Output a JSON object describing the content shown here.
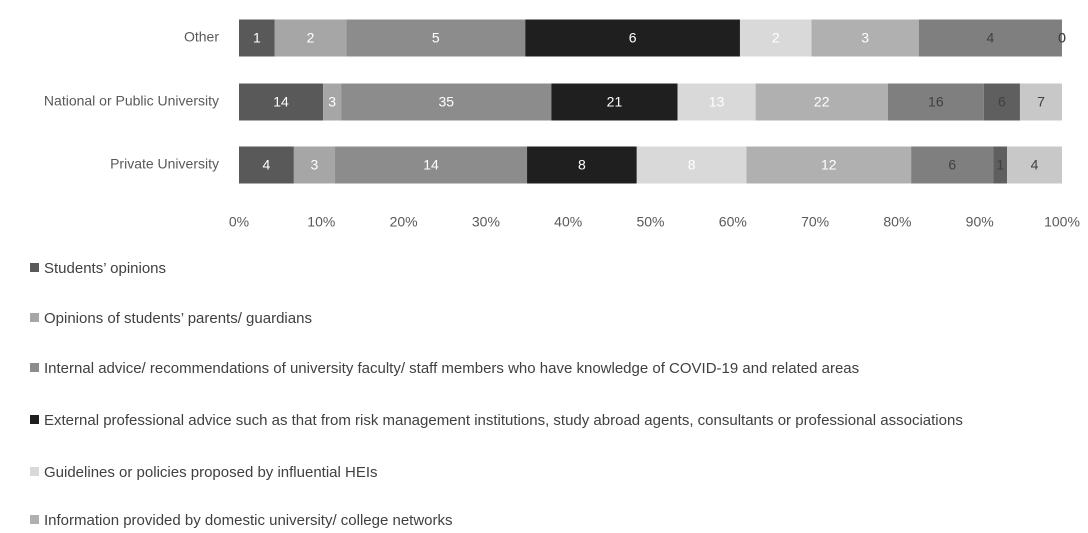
{
  "chart_data": {
    "type": "stacked_percent_barh",
    "categories": [
      "Other",
      "National or Public University",
      "Private University"
    ],
    "series": [
      {
        "name": "Students’ opinions",
        "color": "#595959",
        "label_color": "#ffffff",
        "values": [
          1,
          14,
          4
        ]
      },
      {
        "name": "Opinions of students’ parents/ guardians",
        "color": "#a6a6a6",
        "label_color": "#ffffff",
        "values": [
          2,
          3,
          3
        ]
      },
      {
        "name": "Internal advice/ recommendations of university faculty/ staff members who have knowledge of COVID-19 and related areas",
        "color": "#8c8c8c",
        "label_color": "#ffffff",
        "values": [
          5,
          35,
          14
        ]
      },
      {
        "name": "External professional advice such as that from risk management institutions, study abroad agents, consultants or professional associations",
        "color": "#1f1f1f",
        "label_color": "#ffffff",
        "values": [
          6,
          21,
          8
        ]
      },
      {
        "name": "Guidelines or policies proposed by influential HEIs",
        "color": "#d9d9d9",
        "label_color": "#ffffff",
        "values": [
          2,
          13,
          8
        ]
      },
      {
        "name": "Information provided by domestic university/ college networks",
        "color": "#b0b0b0",
        "label_color": "#ffffff",
        "values": [
          3,
          22,
          12
        ]
      },
      {
        "color": "#7f7f7f",
        "label_color": "#404040",
        "values": [
          4,
          16,
          6
        ]
      },
      {
        "color": "#5f5f5f",
        "label_color": "#404040",
        "values": [
          0,
          6,
          1
        ]
      },
      {
        "color": "#c8c8c8",
        "label_color": "#404040",
        "values": [
          0,
          7,
          4
        ]
      }
    ],
    "xlim": [
      0,
      100
    ],
    "xticks": [
      {
        "value": 0,
        "label": "0%"
      },
      {
        "value": 10,
        "label": "10%"
      },
      {
        "value": 20,
        "label": "20%"
      },
      {
        "value": 30,
        "label": "30%"
      },
      {
        "value": 40,
        "label": "40%"
      },
      {
        "value": 50,
        "label": "50%"
      },
      {
        "value": 60,
        "label": "60%"
      },
      {
        "value": 70,
        "label": "70%"
      },
      {
        "value": 80,
        "label": "80%"
      },
      {
        "value": 90,
        "label": "90%"
      },
      {
        "value": 100,
        "label": "100%"
      }
    ]
  }
}
